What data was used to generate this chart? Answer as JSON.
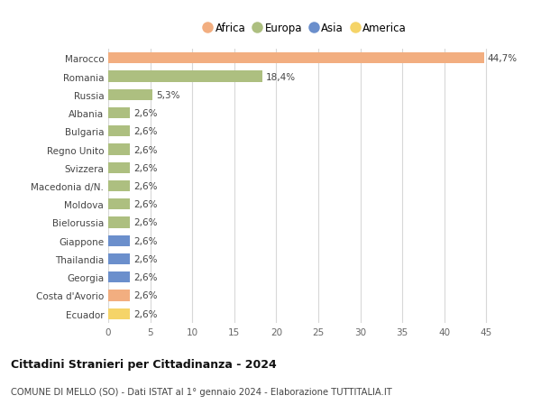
{
  "countries": [
    "Marocco",
    "Romania",
    "Russia",
    "Albania",
    "Bulgaria",
    "Regno Unito",
    "Svizzera",
    "Macedonia d/N.",
    "Moldova",
    "Bielorussia",
    "Giappone",
    "Thailandia",
    "Georgia",
    "Costa d'Avorio",
    "Ecuador"
  ],
  "values": [
    44.7,
    18.4,
    5.3,
    2.6,
    2.6,
    2.6,
    2.6,
    2.6,
    2.6,
    2.6,
    2.6,
    2.6,
    2.6,
    2.6,
    2.6
  ],
  "labels": [
    "44,7%",
    "18,4%",
    "5,3%",
    "2,6%",
    "2,6%",
    "2,6%",
    "2,6%",
    "2,6%",
    "2,6%",
    "2,6%",
    "2,6%",
    "2,6%",
    "2,6%",
    "2,6%",
    "2,6%"
  ],
  "continents": [
    "Africa",
    "Europa",
    "Europa",
    "Europa",
    "Europa",
    "Europa",
    "Europa",
    "Europa",
    "Europa",
    "Europa",
    "Asia",
    "Asia",
    "Asia",
    "Africa",
    "America"
  ],
  "colors": {
    "Africa": "#F2AE80",
    "Europa": "#ADBF80",
    "Asia": "#6B8FCC",
    "America": "#F5D468"
  },
  "xlim": [
    0,
    47
  ],
  "xticks": [
    0,
    5,
    10,
    15,
    20,
    25,
    30,
    35,
    40,
    45
  ],
  "title": "Cittadini Stranieri per Cittadinanza - 2024",
  "subtitle": "COMUNE DI MELLO (SO) - Dati ISTAT al 1° gennaio 2024 - Elaborazione TUTTITALIA.IT",
  "bg_color": "#ffffff",
  "bar_height": 0.6,
  "grid_color": "#d8d8d8",
  "legend_order": [
    "Africa",
    "Europa",
    "Asia",
    "America"
  ]
}
